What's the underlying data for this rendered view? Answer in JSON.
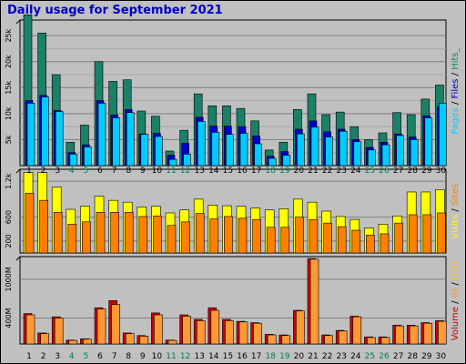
{
  "title": "Daily usage for September 2021",
  "colors": {
    "hits": "#1a8066",
    "files": "#0000cc",
    "pages": "#00ccff",
    "visits": "#ffff00",
    "sites": "#ff8000",
    "volume": "#cc0000",
    "in": "#ff9933",
    "out": "#ffcc00",
    "weekend": "#00804d",
    "weekday": "#000000"
  },
  "chart_data": [
    {
      "type": "bar",
      "panel": "hits-files-pages",
      "categories": [
        "1",
        "2",
        "3",
        "4",
        "5",
        "6",
        "7",
        "8",
        "9",
        "10",
        "11",
        "12",
        "13",
        "14",
        "15",
        "16",
        "17",
        "18",
        "19",
        "20",
        "21",
        "22",
        "23",
        "24",
        "25",
        "26",
        "27",
        "28",
        "29",
        "30"
      ],
      "weekend_categories": [
        "4",
        "5",
        "11",
        "12",
        "18",
        "19",
        "25",
        "26"
      ],
      "y_ticks": [
        "5k",
        "10k",
        "15k",
        "20k",
        "25k"
      ],
      "ylim": [
        0,
        28000
      ],
      "legend": [
        {
          "text": "Pages",
          "color_key": "pages"
        },
        {
          "text": " / ",
          "color_key": "weekday"
        },
        {
          "text": "Files",
          "color_key": "files"
        },
        {
          "text": " / ",
          "color_key": "weekday"
        },
        {
          "text": "Hits",
          "color_key": "hits"
        },
        {
          "text": "_",
          "color_key": "hits"
        }
      ],
      "series": [
        {
          "key": "hits",
          "values": [
            29000,
            25500,
            17500,
            4500,
            7800,
            20000,
            16200,
            16500,
            10500,
            9500,
            2800,
            6800,
            13800,
            11500,
            11500,
            11000,
            8600,
            3000,
            4500,
            10800,
            13800,
            9800,
            10300,
            7500,
            5000,
            6300,
            10200,
            9800,
            12800,
            15500
          ]
        },
        {
          "key": "files",
          "values": [
            12500,
            13500,
            10600,
            2500,
            4000,
            12500,
            9700,
            10800,
            6100,
            6200,
            2000,
            4300,
            9300,
            7600,
            7600,
            7500,
            5700,
            1800,
            2700,
            7000,
            8600,
            6500,
            7000,
            5000,
            3500,
            4500,
            6100,
            5500,
            9600,
            11300
          ]
        },
        {
          "key": "pages",
          "values": [
            12000,
            13200,
            10400,
            2200,
            3600,
            12000,
            9200,
            10200,
            6000,
            5600,
            1200,
            2200,
            8500,
            6400,
            6000,
            6200,
            4200,
            1400,
            2000,
            6100,
            7400,
            5500,
            6600,
            4600,
            3000,
            4000,
            5800,
            5000,
            9200,
            12000
          ]
        }
      ]
    },
    {
      "type": "bar",
      "panel": "visits-sites",
      "categories": [
        "1",
        "2",
        "3",
        "4",
        "5",
        "6",
        "7",
        "8",
        "9",
        "10",
        "11",
        "12",
        "13",
        "14",
        "15",
        "16",
        "17",
        "18",
        "19",
        "20",
        "21",
        "22",
        "23",
        "24",
        "25",
        "26",
        "27",
        "28",
        "29",
        "30"
      ],
      "y_ticks": [
        "200",
        "600",
        "1.2k"
      ],
      "ylim": [
        0,
        1400
      ],
      "legend": [
        {
          "text": "Visits",
          "color_key": "visits"
        },
        {
          "text": " / ",
          "color_key": "weekday"
        },
        {
          "text": "Sites",
          "color_key": "sites"
        }
      ],
      "series": [
        {
          "key": "visits",
          "values": [
            1350,
            1350,
            1100,
            730,
            780,
            950,
            880,
            850,
            770,
            780,
            670,
            720,
            900,
            800,
            790,
            780,
            750,
            720,
            740,
            900,
            850,
            700,
            610,
            560,
            420,
            480,
            620,
            1020,
            1020,
            1060
          ]
        },
        {
          "key": "sites",
          "values": [
            1000,
            880,
            680,
            480,
            520,
            680,
            680,
            680,
            610,
            620,
            460,
            520,
            660,
            570,
            610,
            580,
            560,
            430,
            430,
            600,
            560,
            500,
            440,
            380,
            300,
            320,
            500,
            640,
            640,
            670
          ]
        }
      ]
    },
    {
      "type": "bar",
      "panel": "volume-in-out",
      "categories": [
        "1",
        "2",
        "3",
        "4",
        "5",
        "6",
        "7",
        "8",
        "9",
        "10",
        "11",
        "12",
        "13",
        "14",
        "15",
        "16",
        "17",
        "18",
        "19",
        "20",
        "21",
        "22",
        "23",
        "24",
        "25",
        "26",
        "27",
        "28",
        "29",
        "30"
      ],
      "y_ticks": [
        "400M",
        "1000M"
      ],
      "ylim": [
        0,
        1350
      ],
      "legend": [
        {
          "text": "Volume",
          "color_key": "volume"
        },
        {
          "text": " / ",
          "color_key": "weekday"
        },
        {
          "text": "IN",
          "color_key": "in"
        },
        {
          "text": " / ",
          "color_key": "weekday"
        },
        {
          "text": "OUT",
          "color_key": "out"
        }
      ],
      "series": [
        {
          "key": "volume",
          "values": [
            470,
            170,
            420,
            60,
            80,
            560,
            670,
            170,
            130,
            480,
            60,
            450,
            380,
            560,
            380,
            350,
            330,
            150,
            140,
            520,
            1320,
            140,
            210,
            430,
            110,
            110,
            290,
            290,
            330,
            360
          ]
        },
        {
          "key": "in",
          "values": [
            450,
            160,
            400,
            55,
            75,
            540,
            610,
            160,
            120,
            450,
            55,
            430,
            360,
            520,
            360,
            340,
            320,
            140,
            130,
            510,
            1310,
            130,
            200,
            420,
            100,
            100,
            280,
            280,
            320,
            350
          ]
        },
        {
          "key": "out",
          "values": [
            10,
            5,
            10,
            2,
            2,
            10,
            10,
            5,
            5,
            10,
            2,
            10,
            10,
            10,
            10,
            10,
            8,
            5,
            5,
            10,
            10,
            5,
            5,
            10,
            5,
            5,
            8,
            8,
            8,
            8
          ]
        }
      ]
    }
  ]
}
